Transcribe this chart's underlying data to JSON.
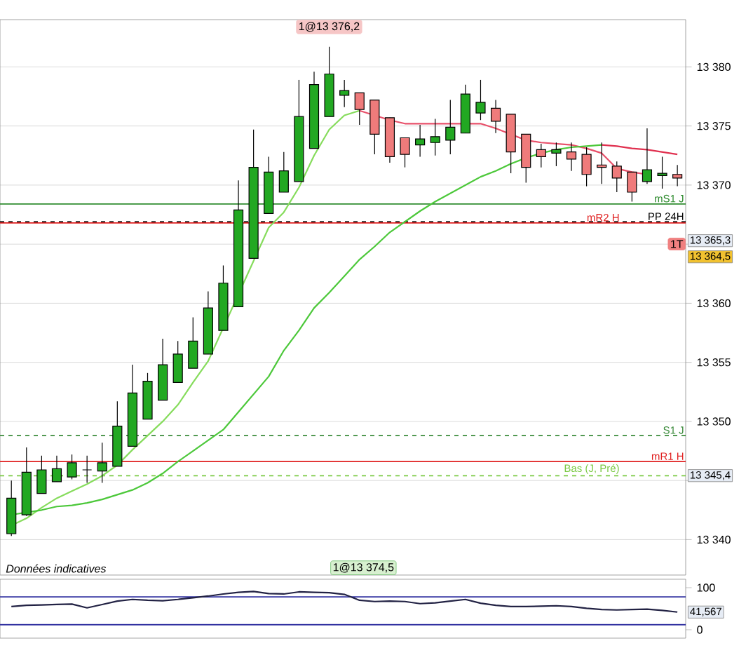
{
  "chart_data": [
    {
      "type": "candlestick",
      "categories": [
        null,
        null,
        null,
        null,
        null,
        null,
        null,
        null,
        null,
        null,
        null,
        null,
        null,
        null,
        null,
        null,
        null,
        null,
        null,
        null,
        null,
        null,
        null,
        null,
        null,
        null,
        null,
        null,
        null,
        null,
        null,
        null,
        null,
        null,
        null,
        null,
        null,
        null,
        null,
        null,
        null,
        null,
        null,
        null,
        null
      ],
      "ohlc": [
        [
          13340.5,
          13345.0,
          13340.3,
          13343.5
        ],
        [
          13342.1,
          13347.8,
          13342.0,
          13345.7
        ],
        [
          13343.9,
          13347.1,
          13343.9,
          13345.9
        ],
        [
          13344.9,
          13347.1,
          13344.9,
          13346.0
        ],
        [
          13345.3,
          13347.2,
          13345.1,
          13346.5
        ],
        [
          13345.9,
          13347.1,
          13344.8,
          13345.9
        ],
        [
          13345.8,
          13348.2,
          13344.8,
          13346.5
        ],
        [
          13346.2,
          13351.7,
          13346.2,
          13349.6
        ],
        [
          13347.9,
          13354.8,
          13347.9,
          13352.4
        ],
        [
          13350.2,
          13354.1,
          13350.2,
          13353.4
        ],
        [
          13351.8,
          13357.0,
          13351.8,
          13354.8
        ],
        [
          13353.3,
          13356.8,
          13353.3,
          13355.7
        ],
        [
          13354.5,
          13358.8,
          13354.5,
          13356.8
        ],
        [
          13355.7,
          13361.0,
          13355.7,
          13359.6
        ],
        [
          13357.7,
          13363.2,
          13357.7,
          13361.7
        ],
        [
          13359.7,
          13370.4,
          13359.7,
          13367.9
        ],
        [
          13363.8,
          13374.7,
          13363.8,
          13371.5
        ],
        [
          13367.6,
          13372.4,
          13367.6,
          13371.1
        ],
        [
          13369.4,
          13372.8,
          13369.4,
          13371.2
        ],
        [
          13370.3,
          13378.9,
          13370.3,
          13375.8
        ],
        [
          13373.1,
          13379.6,
          13373.1,
          13378.5
        ],
        [
          13375.8,
          13381.7,
          13375.8,
          13379.4
        ],
        [
          13377.6,
          13378.9,
          13376.6,
          13378.0
        ],
        [
          13377.8,
          13377.8,
          13375.1,
          13376.4
        ],
        [
          13377.2,
          13377.2,
          13372.6,
          13374.3
        ],
        [
          13375.7,
          13375.7,
          13371.9,
          13372.4
        ],
        [
          13374.0,
          13374.0,
          13371.5,
          13372.6
        ],
        [
          13373.4,
          13375.1,
          13372.4,
          13373.9
        ],
        [
          13373.6,
          13375.6,
          13372.5,
          13374.1
        ],
        [
          13373.8,
          13377.2,
          13372.6,
          13374.9
        ],
        [
          13374.4,
          13378.5,
          13374.4,
          13377.7
        ],
        [
          13376.1,
          13378.9,
          13375.5,
          13377.0
        ],
        [
          13376.5,
          13377.2,
          13374.4,
          13375.4
        ],
        [
          13376.0,
          13376.0,
          13371.0,
          13372.8
        ],
        [
          13374.3,
          13374.3,
          13370.2,
          13371.5
        ],
        [
          13373.0,
          13373.5,
          13371.5,
          13372.4
        ],
        [
          13372.7,
          13373.6,
          13371.6,
          13373.0
        ],
        [
          13372.8,
          13373.6,
          13371.2,
          13372.2
        ],
        [
          13372.6,
          13373.2,
          13369.9,
          13370.9
        ],
        [
          13371.7,
          13373.6,
          13370.1,
          13371.5
        ],
        [
          13371.6,
          13372.0,
          13369.4,
          13370.6
        ],
        [
          13371.1,
          13371.1,
          13368.6,
          13369.4
        ],
        [
          13370.3,
          13374.8,
          13370.1,
          13371.3
        ],
        [
          13370.8,
          13372.4,
          13369.7,
          13371.0
        ],
        [
          13370.9,
          13371.7,
          13369.9,
          13370.6
        ]
      ],
      "colors": [
        "#22a822",
        "#22a822",
        "#22a822",
        "#22a822",
        "#22a822",
        "#000000",
        "#22a822",
        "#22a822",
        "#22a822",
        "#22a822",
        "#22a822",
        "#22a822",
        "#22a822",
        "#22a822",
        "#22a822",
        "#22a822",
        "#22a822",
        "#22a822",
        "#22a822",
        "#22a822",
        "#22a822",
        "#22a822",
        "#22a822",
        "#ef7b7b",
        "#ef7b7b",
        "#ef7b7b",
        "#ef7b7b",
        "#22a822",
        "#22a822",
        "#22a822",
        "#22a822",
        "#22a822",
        "#ef7b7b",
        "#ef7b7b",
        "#ef7b7b",
        "#ef7b7b",
        "#22a822",
        "#ef7b7b",
        "#ef7b7b",
        "#ef7b7b",
        "#ef7b7b",
        "#ef7b7b",
        "#22a822",
        "#22a822",
        "#ef7b7b"
      ],
      "series": [
        {
          "type": "line",
          "color": "#86dc5c",
          "values": [
            13341.2,
            13341.8,
            13342.7,
            13343.5,
            13344.1,
            13344.7,
            13345.4,
            13346.3,
            13347.6,
            13348.8,
            13350.0,
            13351.4,
            13353.3,
            13355.1,
            null,
            null,
            null,
            13366.4,
            13367.7,
            13369.8,
            13372.5,
            13374.7,
            13375.9,
            13376.3,
            null,
            null,
            null,
            null,
            null,
            null,
            null,
            null,
            null,
            null,
            null,
            null,
            null,
            null,
            null,
            null,
            null,
            null,
            null,
            null,
            null
          ]
        },
        {
          "type": "line",
          "color": "#e8506a",
          "values": [
            null,
            null,
            null,
            null,
            null,
            null,
            null,
            null,
            null,
            null,
            null,
            null,
            null,
            null,
            null,
            null,
            null,
            null,
            null,
            null,
            null,
            null,
            null,
            13376.3,
            13375.9,
            13375.5,
            13375.2,
            13375.2,
            13375.2,
            13375.2,
            13375.2,
            13375.2,
            13374.8,
            13374.3,
            13373.8,
            13373.6,
            13373.5,
            13373.4,
            13373.1,
            13372.7,
            13371.4,
            13371.1,
            13370.9,
            null,
            null
          ]
        },
        {
          "type": "line",
          "color": "#4cc83a",
          "values": [
            13342.1,
            13342.3,
            13342.5,
            13342.8,
            13342.9,
            13343.1,
            13343.4,
            13343.8,
            13344.2,
            13344.8,
            13345.6,
            13346.6,
            13347.5,
            13348.4,
            13349.3,
            13350.8,
            13352.3,
            13353.8,
            13356.0,
            13357.7,
            13359.6,
            13360.9,
            13362.3,
            13363.7,
            13364.8,
            13366.0,
            13366.9,
            13367.8,
            13368.6,
            13369.3,
            13370.0,
            13370.7,
            13371.2,
            13371.8,
            13372.3,
            13372.7,
            13373.0,
            13373.2,
            13373.3,
            13373.4,
            null,
            null,
            null,
            null,
            null
          ]
        },
        {
          "type": "line",
          "color": "#e0304f",
          "values": [
            null,
            null,
            null,
            null,
            null,
            null,
            null,
            null,
            null,
            null,
            null,
            null,
            null,
            null,
            null,
            null,
            null,
            null,
            null,
            null,
            null,
            null,
            null,
            null,
            null,
            null,
            null,
            null,
            null,
            null,
            null,
            null,
            null,
            null,
            null,
            null,
            null,
            null,
            null,
            13373.4,
            13373.3,
            13373.1,
            13373.0,
            13372.8,
            13372.6
          ]
        }
      ],
      "ylim": [
        13337,
        13384
      ],
      "yticks": [
        {
          "value": 13340,
          "label": "13 340"
        },
        {
          "value": 13345,
          "label": null
        },
        {
          "value": 13350,
          "label": "13 350"
        },
        {
          "value": 13355,
          "label": "13 355"
        },
        {
          "value": 13360,
          "label": "13 360"
        },
        {
          "value": 13365,
          "label": null
        },
        {
          "value": 13370,
          "label": "13 370"
        },
        {
          "value": 13375,
          "label": "13 375"
        },
        {
          "value": 13380,
          "label": "13 380"
        }
      ],
      "grid": "y",
      "tick_labels": "y",
      "marker": "none",
      "ref_lines": [
        {
          "axis": "y",
          "value": 13368.4,
          "label": "mS1 J",
          "color": "#2e8b2e",
          "line_style": "solid"
        },
        {
          "axis": "y",
          "value": 13366.9,
          "label": "PP 24H",
          "color": "#000000",
          "line_style": "dashed"
        },
        {
          "axis": "y",
          "value": 13366.8,
          "label": "mR2 H",
          "color": "#e02020",
          "line_style": "solid"
        },
        {
          "axis": "y",
          "value": 13348.8,
          "label": "S1 J",
          "color": "#3a8a3a",
          "line_style": "dashed"
        },
        {
          "axis": "y",
          "value": 13346.6,
          "label": "mR1 H",
          "color": "#e02020",
          "line_style": "solid"
        },
        {
          "axis": "y",
          "value": 13345.4,
          "label": "Bas (J, Pré)",
          "color": "#7ac943",
          "line_style": "dashed"
        }
      ],
      "annotations": [
        "1@13 376,2",
        "1@13 374,5",
        "Données indicatives",
        "1T",
        "13 365,3",
        "13 364,5",
        "13 345,4"
      ]
    },
    {
      "type": "line",
      "categories": [
        null,
        null,
        null,
        null,
        null,
        null,
        null,
        null,
        null,
        null,
        null,
        null,
        null,
        null,
        null,
        null,
        null,
        null,
        null,
        null,
        null,
        null,
        null,
        null,
        null,
        null,
        null,
        null,
        null,
        null,
        null,
        null,
        null,
        null,
        null,
        null,
        null,
        null,
        null,
        null,
        null,
        null,
        null,
        null,
        null
      ],
      "series": [
        {
          "color": "#222244",
          "values": [
            55,
            58,
            59,
            60,
            61,
            52,
            60,
            68,
            72,
            70,
            69,
            72,
            76,
            80,
            85,
            89,
            91,
            86,
            85,
            90,
            89,
            88,
            84,
            70,
            67,
            68,
            67,
            62,
            64,
            68,
            72,
            63,
            58,
            55,
            55,
            56,
            57,
            55,
            51,
            48,
            47,
            48,
            49,
            46,
            42
          ]
        }
      ],
      "ylim": [
        -20,
        120
      ],
      "yticks": [
        0,
        100
      ],
      "tick_labels": "y",
      "marker": "none",
      "ref_lines": [
        {
          "axis": "y",
          "value": 78,
          "color": "#3030a0",
          "line_style": "solid"
        },
        {
          "axis": "y",
          "value": 12,
          "color": "#3030a0",
          "line_style": "solid"
        }
      ],
      "annotations": [
        "41,567"
      ]
    }
  ]
}
